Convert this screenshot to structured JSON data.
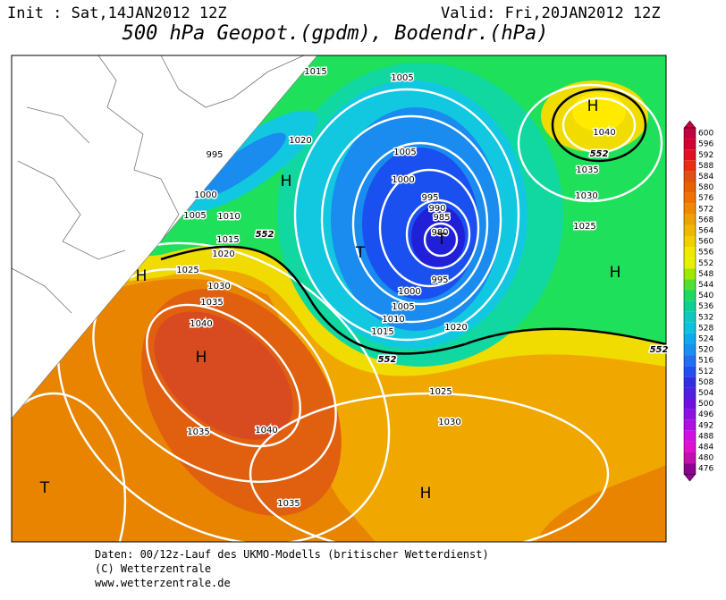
{
  "header": {
    "init": "Init : Sat,14JAN2012 12Z",
    "valid": "Valid: Fri,20JAN2012 12Z",
    "title": "500 hPa Geopot.(gpdm), Bodendr.(hPa)"
  },
  "colorbar": {
    "labels": [
      600,
      596,
      592,
      588,
      584,
      580,
      576,
      572,
      568,
      564,
      560,
      556,
      552,
      548,
      544,
      540,
      536,
      532,
      528,
      524,
      520,
      516,
      512,
      508,
      504,
      500,
      496,
      492,
      488,
      484,
      480,
      476
    ]
  },
  "map": {
    "isobar_labels": [
      "1015",
      "1005",
      "995",
      "1020",
      "1000",
      "1005",
      "1010",
      "1015",
      "1020",
      "1025",
      "1030",
      "1035",
      "1040",
      "1005",
      "1000",
      "995",
      "990",
      "985",
      "980",
      "995",
      "1000",
      "1005",
      "1010",
      "1015",
      "1020",
      "1025",
      "1030",
      "1040",
      "1035",
      "1035",
      "1040",
      "1035",
      "1030",
      "1025"
    ],
    "height_labels": [
      "552",
      "552",
      "552",
      "552"
    ],
    "pressure_centers": [
      "H",
      "H",
      "T",
      "T",
      "H",
      "H",
      "H",
      "T",
      "H"
    ]
  },
  "footer": {
    "lines": [
      "Daten: 00/12z-Lauf des UKMO-Modells (britischer Wetterdienst)",
      "(C) Wetterzentrale",
      "www.wetterzentrale.de"
    ]
  }
}
